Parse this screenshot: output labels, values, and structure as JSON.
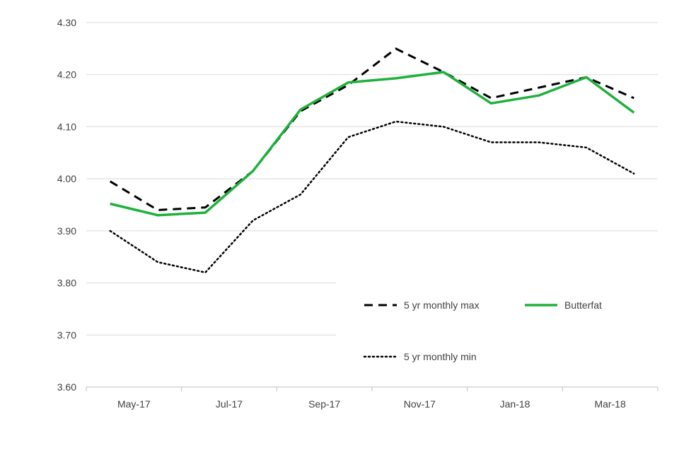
{
  "chart_data": {
    "type": "line",
    "title": "",
    "xlabel": "",
    "ylabel": "",
    "categories": [
      "May-17",
      "Jun-17",
      "Jul-17",
      "Aug-17",
      "Sep-17",
      "Oct-17",
      "Nov-17",
      "Dec-17",
      "Jan-18",
      "Feb-18",
      "Mar-18",
      "Apr-18"
    ],
    "x_tick_labels": [
      "May-17",
      "Jul-17",
      "Sep-17",
      "Nov-17",
      "Jan-18",
      "Mar-18"
    ],
    "y_tick_labels": [
      "3.60",
      "3.70",
      "3.80",
      "3.90",
      "4.00",
      "4.10",
      "4.20",
      "4.30"
    ],
    "ylim": [
      3.6,
      4.3
    ],
    "grid": true,
    "legend_position": "bottom-right inside plot",
    "series": [
      {
        "name": "5 yr monthly max",
        "style": "dashed",
        "color": "#000000",
        "values": [
          3.995,
          3.94,
          3.945,
          4.015,
          4.13,
          4.18,
          4.25,
          4.205,
          4.155,
          4.175,
          4.195,
          4.155
        ]
      },
      {
        "name": "Butterfat",
        "style": "solid",
        "color": "#1eb13c",
        "values": [
          3.952,
          3.93,
          3.935,
          4.015,
          4.133,
          4.185,
          4.193,
          4.205,
          4.145,
          4.16,
          4.195,
          4.127
        ]
      },
      {
        "name": "5 yr monthly min",
        "style": "dotted",
        "color": "#000000",
        "values": [
          3.9,
          3.84,
          3.82,
          3.92,
          3.97,
          4.08,
          4.11,
          4.1,
          4.07,
          4.07,
          4.06,
          4.01
        ]
      }
    ]
  }
}
